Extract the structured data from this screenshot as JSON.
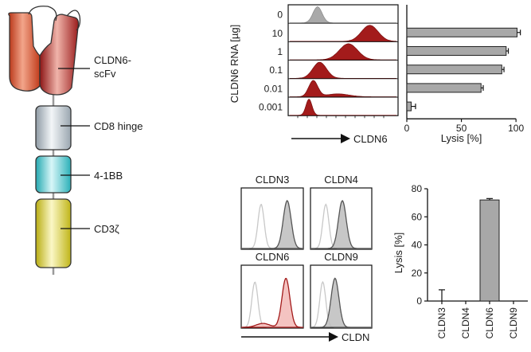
{
  "construct": {
    "domains": [
      {
        "label": "CLDN6-\nscFv",
        "color": "#c43a1f"
      },
      {
        "label": "CD8 hinge",
        "color": "#a9b4bd"
      },
      {
        "label": "4-1BB",
        "color": "#3fc2c8"
      },
      {
        "label": "CD3ζ",
        "color": "#d2c622"
      }
    ]
  },
  "panel_b": {
    "ylabel": "CLDN6 RNA [µg]",
    "xaxis_label": "CLDN6",
    "doses": [
      "0",
      "10",
      "1",
      "0.1",
      "0.01",
      "0.001"
    ],
    "hist_color": "#a31b1b",
    "gray_color": "#a9a9a9"
  },
  "panel_c": {
    "labels": [
      "CLDN3",
      "CLDN4",
      "CLDN6",
      "CLDN9"
    ],
    "xaxis_label": "CLDN"
  },
  "chart_data": [
    {
      "type": "bar",
      "orientation": "horizontal",
      "categories": [
        "0",
        "10",
        "1",
        "0.1",
        "0.01",
        "0.001"
      ],
      "values": [
        null,
        101,
        91,
        87,
        68,
        4
      ],
      "errors": [
        null,
        3,
        2,
        2,
        2,
        4
      ],
      "xlabel": "Lysis [%]",
      "xlim": [
        0,
        105
      ],
      "xticks": [
        0,
        50,
        100
      ]
    },
    {
      "type": "bar",
      "categories": [
        "CLDN3",
        "CLDN4",
        "CLDN6",
        "CLDN9"
      ],
      "values": [
        0,
        0,
        72,
        0
      ],
      "errors": [
        8,
        0,
        1,
        0
      ],
      "ylabel": "Lysis [%]",
      "ylim": [
        0,
        80
      ],
      "yticks": [
        0,
        20,
        40,
        60,
        80
      ]
    }
  ]
}
